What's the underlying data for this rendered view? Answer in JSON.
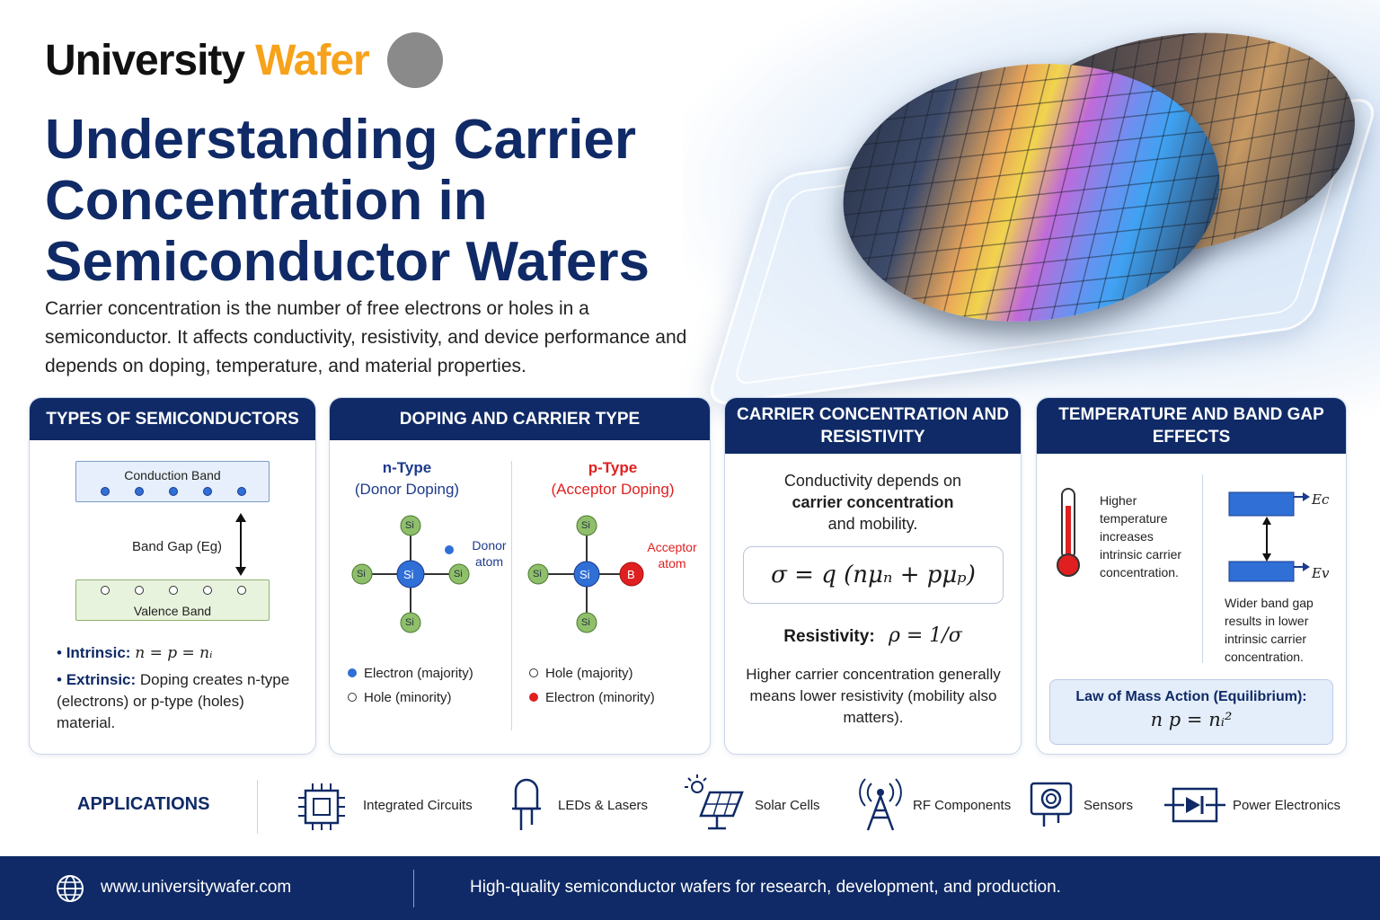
{
  "brand": {
    "part1": "University",
    "part2": "Wafer"
  },
  "title": "Understanding Carrier Concentration in Semiconductor Wafers",
  "lead": "Carrier concentration is the number of free electrons or holes in a semiconductor. It affects conductivity, resistivity, and device performance and depends on doping, temperature, and material properties.",
  "types": {
    "heading": "TYPES OF SEMICONDUCTORS",
    "conduction_band": "Conduction Band",
    "band_gap": "Band Gap (Eg)",
    "valence_band": "Valence Band",
    "intrinsic_label": "Intrinsic:",
    "intrinsic_eq": "n = p = nᵢ",
    "extrinsic_label": "Extrinsic:",
    "extrinsic_text": "Doping creates n-type (electrons) or p-type (holes) material."
  },
  "doping": {
    "heading": "DOPING AND CARRIER TYPE",
    "n_title": "n-Type",
    "n_sub": "(Donor Doping)",
    "p_title": "p-Type",
    "p_sub": "(Acceptor Doping)",
    "si": "Si",
    "boron": "B",
    "donor_atom": "Donor atom",
    "acceptor_atom": "Acceptor atom",
    "n_legend1": "Electron (majority)",
    "n_legend2": "Hole (minority)",
    "p_legend1": "Hole (majority)",
    "p_legend2": "Electron (minority)"
  },
  "resistivity": {
    "heading": "CARRIER CONCENTRATION AND RESISTIVITY",
    "text1": "Conductivity depends on",
    "text2": "carrier concentration",
    "text3": "and mobility.",
    "formula": "σ = q (nμₙ + pμₚ)",
    "res_label": "Resistivity:",
    "res_formula": "ρ = 1/σ",
    "note": "Higher carrier concentration generally means lower resistivity (mobility also matters)."
  },
  "temperature": {
    "heading": "TEMPERATURE AND BAND GAP EFFECTS",
    "temp_text": "Higher temperature increases intrinsic carrier concentration.",
    "ec": "Ec",
    "ev": "Ev",
    "gap_text": "Wider band gap results in lower intrinsic carrier concentration.",
    "law_title": "Law of Mass Action (Equilibrium):",
    "law_eq": "n p = nᵢ²"
  },
  "applications": {
    "heading": "APPLICATIONS",
    "items": [
      "Integrated Circuits",
      "LEDs & Lasers",
      "Solar Cells",
      "RF Components",
      "Sensors",
      "Power Electronics"
    ]
  },
  "footer": {
    "url": "www.universitywafer.com",
    "tagline": "High-quality semiconductor wafers for research, development, and production."
  },
  "colors": {
    "navy": "#0f2a66",
    "orange": "#f7a21a",
    "si_green": "#8fbf6a",
    "boron_red": "#e02020",
    "electron_blue": "#2f6fd6"
  }
}
